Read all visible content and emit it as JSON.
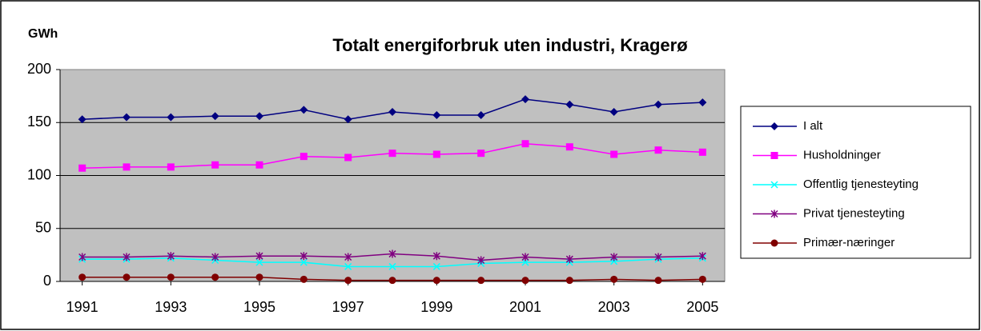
{
  "chart_data": {
    "type": "line",
    "title": "Totalt energiforbruk uten industri, Kragerø",
    "y_label": "GWh",
    "x": [
      1991,
      1992,
      1993,
      1994,
      1995,
      1996,
      1997,
      1998,
      1999,
      2000,
      2001,
      2002,
      2003,
      2004,
      2005
    ],
    "xlim": [
      1990.5,
      2005.5
    ],
    "xticks": [
      1991,
      1993,
      1995,
      1997,
      1999,
      2001,
      2003,
      2005
    ],
    "ylim": [
      0,
      200
    ],
    "yticks": [
      0,
      50,
      100,
      150,
      200
    ],
    "grid": true,
    "legend": "right",
    "series": [
      {
        "name": "I alt",
        "color": "#000080",
        "marker": "diamond",
        "values": [
          153,
          155,
          155,
          156,
          156,
          162,
          153,
          160,
          157,
          157,
          172,
          167,
          160,
          167,
          169
        ]
      },
      {
        "name": "Husholdninger",
        "color": "#ff00ff",
        "marker": "square",
        "values": [
          107,
          108,
          108,
          110,
          110,
          118,
          117,
          121,
          120,
          121,
          130,
          127,
          120,
          124,
          122
        ]
      },
      {
        "name": "Offentlig tjenesteyting",
        "color": "#00ffff",
        "marker": "x",
        "values": [
          21,
          21,
          22,
          20,
          18,
          18,
          14,
          14,
          14,
          17,
          18,
          18,
          19,
          21,
          22
        ]
      },
      {
        "name": "Privat tjenesteyting",
        "color": "#800080",
        "marker": "star",
        "values": [
          23,
          23,
          24,
          23,
          24,
          24,
          23,
          26,
          24,
          20,
          23,
          21,
          23,
          23,
          24
        ]
      },
      {
        "name": "Primær-næringer",
        "color": "#800000",
        "marker": "circle",
        "values": [
          4,
          4,
          4,
          4,
          4,
          2,
          1,
          1,
          1,
          1,
          1,
          1,
          2,
          1,
          2
        ]
      }
    ]
  }
}
